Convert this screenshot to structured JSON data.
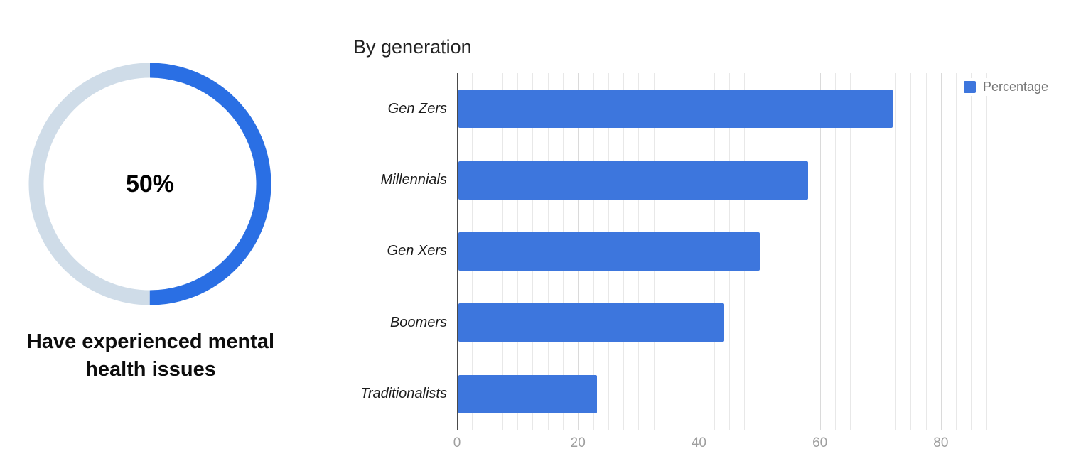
{
  "donut": {
    "percent": 50,
    "center_label": "50%",
    "caption_lines": [
      "Have experienced mental",
      "health issues"
    ],
    "caption": "Have experienced mental health issues",
    "colors": {
      "active": "#2a6fe4",
      "track": "#cfdce8"
    }
  },
  "bar_chart": {
    "title": "By generation",
    "accent": "#3d76dd",
    "legend": {
      "label": "Percentage",
      "color": "#3d76dd"
    }
  },
  "chart_data": [
    {
      "type": "pie",
      "title": "Have experienced mental health issues",
      "labels": [
        "Have experienced mental health issues",
        "Remainder"
      ],
      "values": [
        50,
        50
      ],
      "center_label": "50%"
    },
    {
      "type": "bar",
      "orientation": "horizontal",
      "title": "By generation",
      "categories": [
        "Gen Zers",
        "Millennials",
        "Gen Xers",
        "Boomers",
        "Traditionalists"
      ],
      "series": [
        {
          "name": "Percentage",
          "values": [
            72,
            58,
            50,
            44,
            23
          ]
        }
      ],
      "values": [
        72,
        58,
        50,
        44,
        23
      ],
      "xlabel": "",
      "ylabel": "",
      "xlim": [
        0,
        90
      ],
      "xticks": [
        0,
        20,
        40,
        60,
        80
      ],
      "grid": true,
      "minor_grid_step": 2.5,
      "legend_position": "top-right"
    }
  ]
}
